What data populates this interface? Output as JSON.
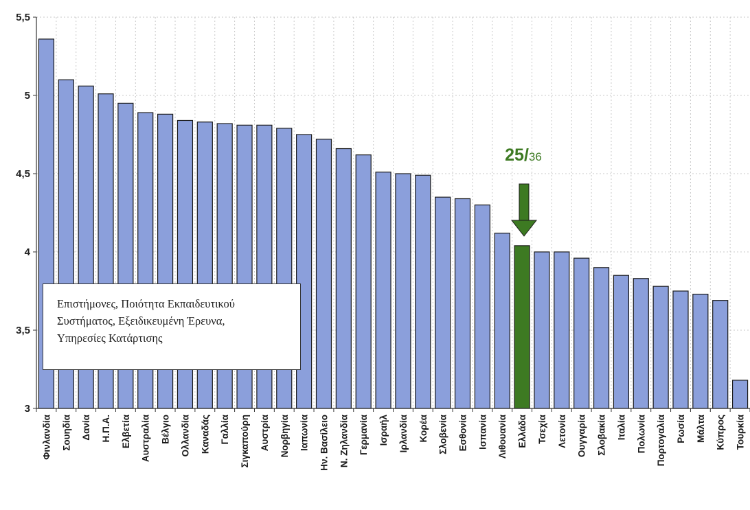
{
  "chart_data": {
    "type": "bar",
    "categories": [
      "Φινλανδία",
      "Σουηδία",
      "Δανία",
      "Η.Π.Α.",
      "Ελβετία",
      "Αυστραλία",
      "Βέλγιο",
      "Ολλανδία",
      "Καναδάς",
      "Γαλλία",
      "Σιγκαπούρη",
      "Αυστρία",
      "Νορβηγία",
      "Ιαπωνία",
      "Ην. Βασίλειο",
      "Ν. Ζηλανδία",
      "Γερμανία",
      "Ισραήλ",
      "Ιρλανδία",
      "Κορέα",
      "Σλοβενία",
      "Εσθονία",
      "Ισπανία",
      "Λιθουανία",
      "Ελλάδα",
      "Τσεχία",
      "Λετονία",
      "Ουγγαρία",
      "Σλοβακία",
      "Ιταλία",
      "Πολωνία",
      "Πορτογαλία",
      "Ρωσία",
      "Μάλτα",
      "Κύπρος",
      "Τουρκία"
    ],
    "values": [
      5.36,
      5.1,
      5.06,
      5.01,
      4.95,
      4.89,
      4.88,
      4.84,
      4.83,
      4.82,
      4.81,
      4.81,
      4.79,
      4.75,
      4.72,
      4.66,
      4.62,
      4.51,
      4.5,
      4.49,
      4.35,
      4.34,
      4.3,
      4.12,
      4.04,
      4.0,
      4.0,
      3.96,
      3.9,
      3.85,
      3.83,
      3.78,
      3.75,
      3.73,
      3.69,
      3.18
    ],
    "highlight_index": 24,
    "ylim": [
      3,
      5.5
    ],
    "yticks": [
      "3",
      "3,5",
      "4",
      "4,5",
      "5",
      "5,5"
    ],
    "grid": true,
    "colors": {
      "bar": "#8B9FDB",
      "bar_edge": "#1b1b1b",
      "highlight": "#3D7A22",
      "grid": "#c8c8c8",
      "axis": "#333333",
      "annotation": "#3D7A22"
    },
    "title": "",
    "xlabel": "",
    "ylabel": ""
  },
  "annotation": {
    "rank": "25/",
    "total": "36",
    "arrow_icon": "arrow-down-icon"
  },
  "legend": {
    "lines": [
      "Επιστήμονες, Ποιότητα Εκπαιδευτικού",
      "Συστήματος, Εξειδικευμένη Έρευνα,",
      "Υπηρεσίες Κατάρτισης"
    ]
  }
}
